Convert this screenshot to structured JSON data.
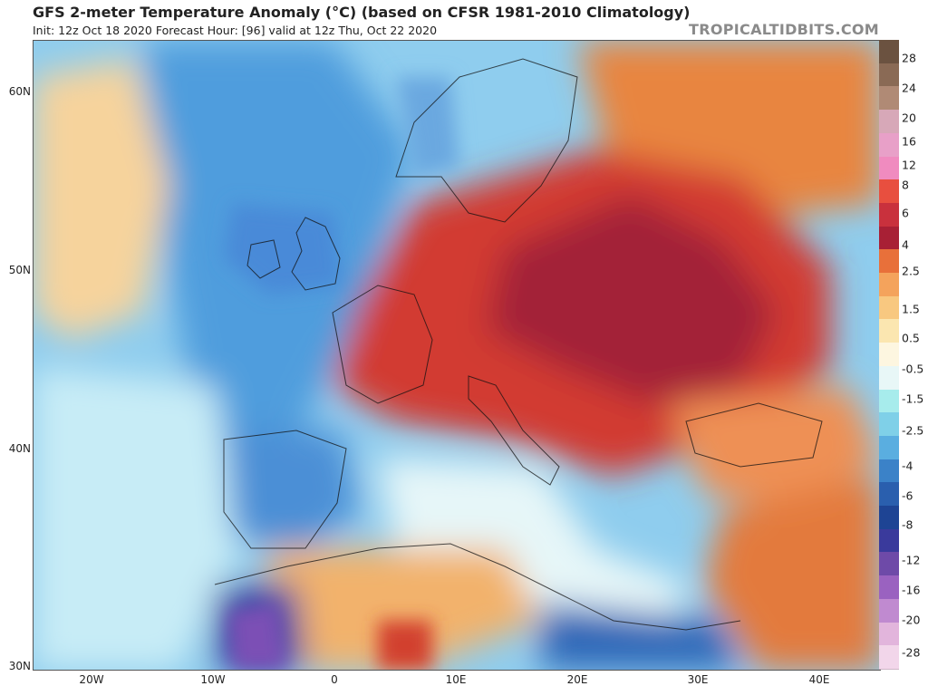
{
  "header": {
    "title": "GFS 2-meter Temperature Anomaly (°C) (based on CFSR 1981-2010 Climatology)",
    "subtitle": "Init: 12z Oct 18 2020   Forecast Hour: [96]   valid at 12z Thu, Oct 22 2020",
    "brand": "TROPICALTIDBITS.COM"
  },
  "axes": {
    "lat_labels": [
      "60N",
      "50N",
      "40N",
      "30N"
    ],
    "lon_labels": [
      "20W",
      "10W",
      "0",
      "10E",
      "20E",
      "30E",
      "40E"
    ]
  },
  "colorbar": {
    "labels": [
      "28",
      "24",
      "20",
      "16",
      "12",
      "8",
      "6",
      "4",
      "2.5",
      "1.5",
      "0.5",
      "-0.5",
      "-1.5",
      "-2.5",
      "-4",
      "-6",
      "-8",
      "-12",
      "-16",
      "-20",
      "-28"
    ],
    "colors": [
      "#6b5240",
      "#8a6a55",
      "#b08a75",
      "#d7a8b8",
      "#e8a0c8",
      "#f08bbf",
      "#e84f3f",
      "#c9313d",
      "#a82035",
      "#e8703a",
      "#f4a35c",
      "#f8c880",
      "#fbe6b0",
      "#fdf6e0",
      "#e8f7f7",
      "#a7ecec",
      "#7fd0e8",
      "#5aaee0",
      "#3b82c8",
      "#2a5fae",
      "#1e4494",
      "#3a3a9c",
      "#6e4aa8",
      "#9a62c0",
      "#c08ad0",
      "#e2b5dc",
      "#f2d6ea"
    ]
  },
  "map": {
    "ocean_cold": "#5fb3e6",
    "ocean_cool": "#a8dcf2",
    "warm": "#f3a060",
    "hot": "#d9402e",
    "very_hot": "#b02a3a",
    "land_cool": "#3f7fcf"
  }
}
